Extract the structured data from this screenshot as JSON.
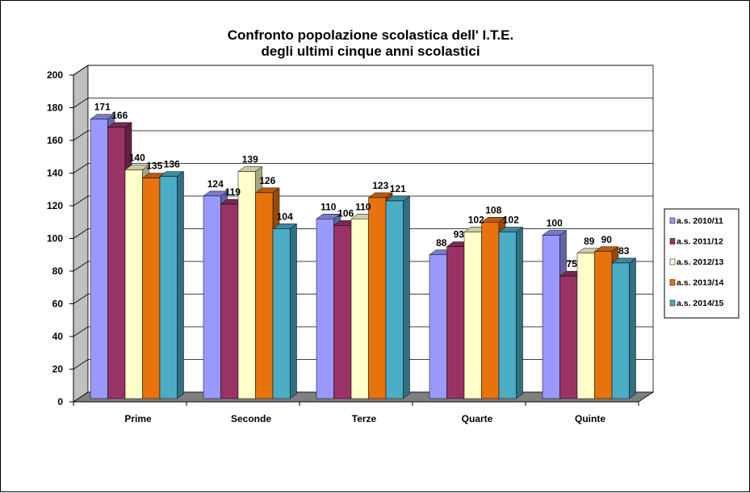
{
  "chart_data": {
    "type": "bar",
    "title": [
      "Confronto popolazione scolastica dell' I.T.E.",
      "degli ultimi cinque anni scolastici"
    ],
    "categories": [
      "Prime",
      "Seconde",
      "Terze",
      "Quarte",
      "Quinte"
    ],
    "series": [
      {
        "name": "a.s. 2010/11",
        "color": "#9999FF",
        "values": [
          171,
          124,
          110,
          88,
          100
        ]
      },
      {
        "name": "a.s. 2011/12",
        "color": "#993366",
        "values": [
          166,
          119,
          106,
          93,
          75
        ]
      },
      {
        "name": "a.s. 2012/13",
        "color": "#FFFFCC",
        "values": [
          140,
          139,
          110,
          102,
          89
        ]
      },
      {
        "name": "a.s. 2013/14",
        "color": "#E8720C",
        "values": [
          135,
          126,
          123,
          108,
          90
        ]
      },
      {
        "name": "a.s. 2014/15",
        "color": "#4BACC6",
        "values": [
          136,
          104,
          121,
          102,
          83
        ]
      }
    ],
    "ylim": [
      0,
      200
    ],
    "yticks": [
      0,
      20,
      40,
      60,
      80,
      100,
      120,
      140,
      160,
      180,
      200
    ],
    "grid": true,
    "legend": "right",
    "style": "3d-clustered-column"
  }
}
